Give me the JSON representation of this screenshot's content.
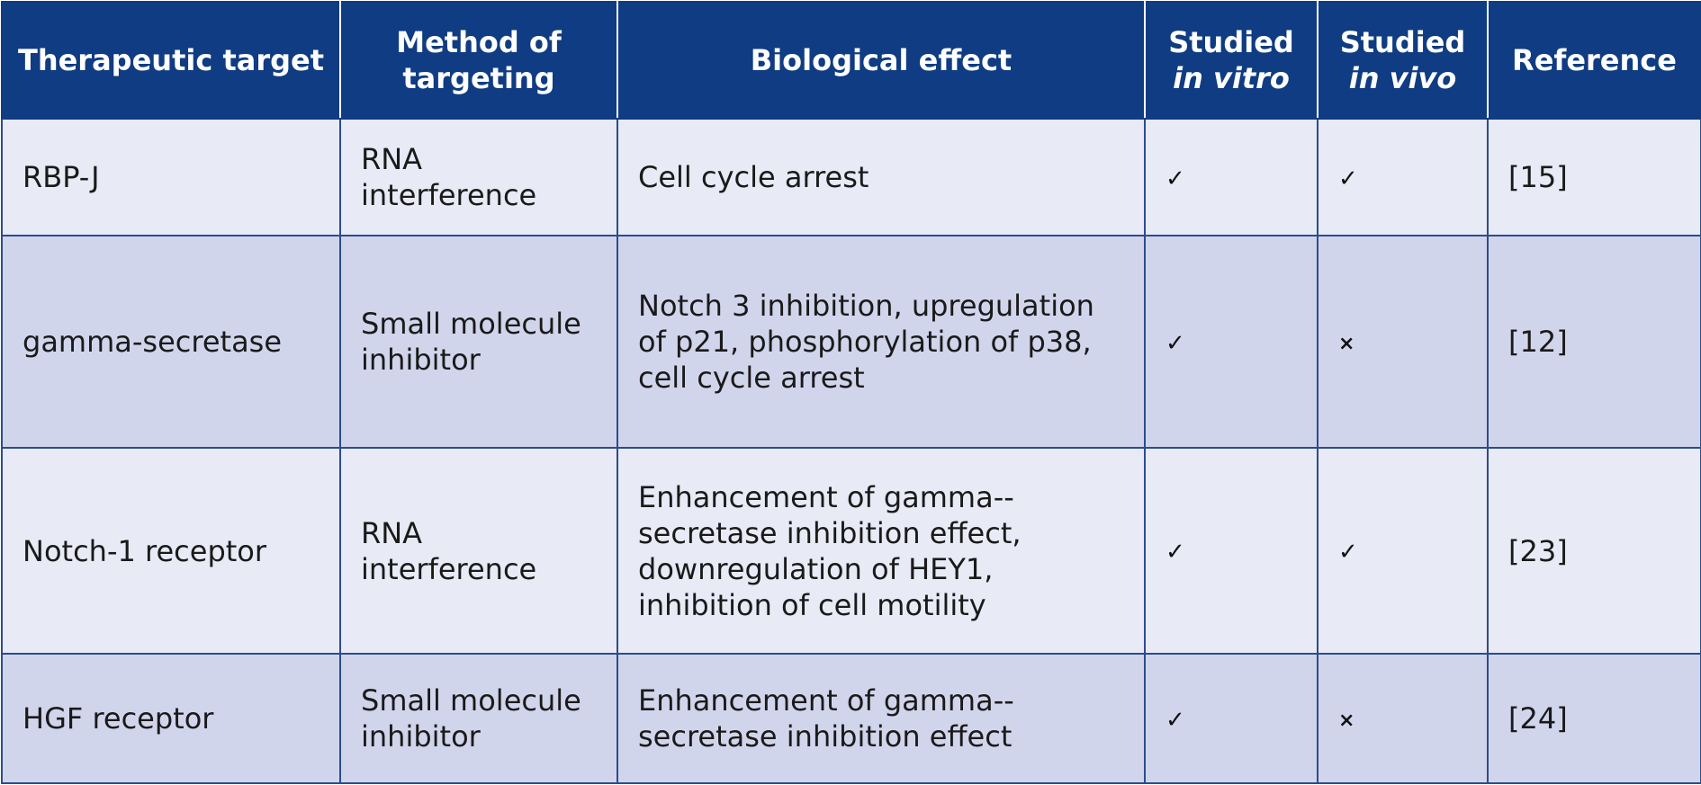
{
  "header": {
    "target": "Therapeutic target",
    "method": "Method of targeting",
    "effect": "Biological effect",
    "in_vitro_prefix": "Studied",
    "in_vitro_em": "in vitro",
    "in_vivo_prefix": "Studied",
    "in_vivo_em": "in vivo",
    "reference": "Reference"
  },
  "rows": [
    {
      "target": "RBP-J",
      "method": "RNA interference",
      "effect": "Cell cycle arrest",
      "in_vitro": "✓",
      "in_vivo": "✓",
      "reference": "[15]"
    },
    {
      "target": "gamma-secretase",
      "method": "Small molecule inhibitor",
      "effect": "Notch 3 inhibition, upregulation of p21, phosphorylation of p38, cell cycle arrest",
      "in_vitro": "✓",
      "in_vivo": "×",
      "reference": "[12]"
    },
    {
      "target": "Notch-1 receptor",
      "method": "RNA interference",
      "effect": "Enhancement of gamma--secretase inhibition effect, downregulation of HEY1, inhibition of cell motility",
      "in_vitro": "✓",
      "in_vivo": "✓",
      "reference": "[23]"
    },
    {
      "target": "HGF receptor",
      "method": "Small molecule inhibitor",
      "effect": "Enhancement of gamma--secretase inhibition effect",
      "in_vitro": "✓",
      "in_vivo": "×",
      "reference": "[24]"
    }
  ],
  "colors": {
    "header_bg": "#0f3c82",
    "row_light": "#e8eaf6",
    "row_dark": "#d1d5ec",
    "border": "#2b4c8e"
  }
}
